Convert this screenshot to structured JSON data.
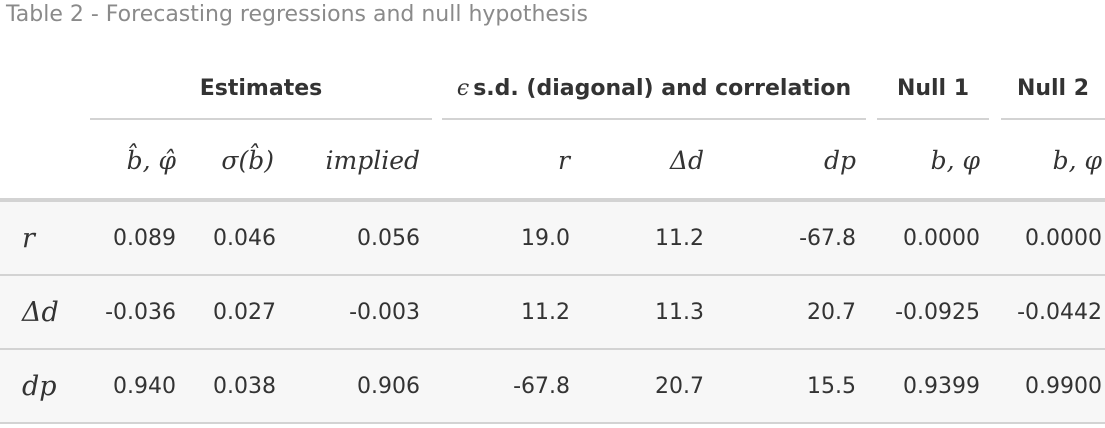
{
  "caption": "Table 2 - Forecasting regressions and null hypothesis",
  "spanners": {
    "estimates": "Estimates",
    "eps_symbol": "ϵ",
    "correlation": "s.d. (diagonal) and correlation",
    "null1": "Null 1",
    "null2": "Null 2"
  },
  "column_headers": {
    "bphi": "b̂, φ̂",
    "sigma": "σ(b̂)",
    "implied": "implied",
    "r": "r",
    "delta_d": "Δd",
    "dp": "dp",
    "null1": "b, φ",
    "null2": "b, φ"
  },
  "rows": [
    {
      "label": "r",
      "bphi": "0.089",
      "sigma": "0.046",
      "implied": "0.056",
      "r": "19.0",
      "delta_d": "11.2",
      "dp": "-67.8",
      "null1": "0.0000",
      "null2": "0.0000"
    },
    {
      "label": "Δd",
      "bphi": "-0.036",
      "sigma": "0.027",
      "implied": "-0.003",
      "r": "11.2",
      "delta_d": "11.3",
      "dp": "20.7",
      "null1": "-0.0925",
      "null2": "-0.0442"
    },
    {
      "label": "dp",
      "bphi": "0.940",
      "sigma": "0.038",
      "implied": "0.906",
      "r": "-67.8",
      "delta_d": "20.7",
      "dp": "15.5",
      "null1": "0.9399",
      "null2": "0.9900"
    }
  ]
}
